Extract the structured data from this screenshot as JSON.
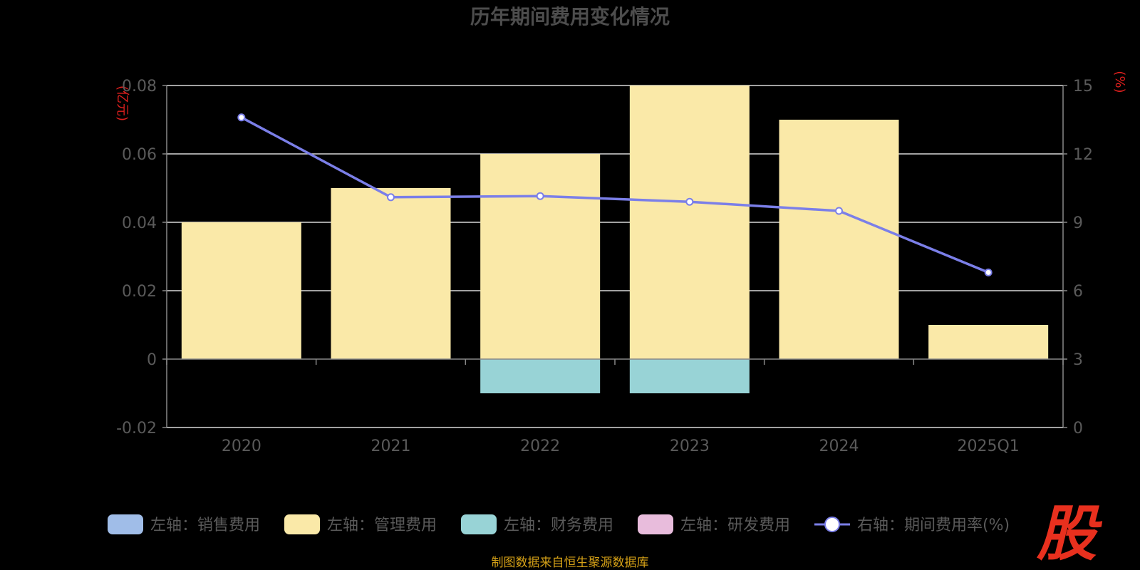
{
  "chart_data": {
    "type": "bar",
    "title": "历年期间费用变化情况",
    "categories": [
      "2020",
      "2021",
      "2022",
      "2023",
      "2024",
      "2025Q1"
    ],
    "left_axis": {
      "unit": "(亿元)",
      "ylim": [
        -0.02,
        0.08
      ],
      "ticks": [
        "0.08",
        "0.06",
        "0.04",
        "0.02",
        "0",
        "-0.02"
      ],
      "tick_values": [
        0.08,
        0.06,
        0.04,
        0.02,
        0,
        -0.02
      ]
    },
    "right_axis": {
      "unit": "(%)",
      "ylim": [
        0,
        15
      ],
      "ticks": [
        "15",
        "12",
        "9",
        "6",
        "3",
        "0"
      ],
      "tick_values": [
        15,
        12,
        9,
        6,
        3,
        0
      ]
    },
    "series": [
      {
        "name": "左轴：销售费用",
        "type": "bar",
        "axis": "left",
        "color": "#a0bde8",
        "values": [
          0,
          0,
          0,
          0,
          0,
          0
        ]
      },
      {
        "name": "左轴：管理费用",
        "type": "bar",
        "axis": "left",
        "color": "#fae9a8",
        "values": [
          0.04,
          0.05,
          0.06,
          0.08,
          0.07,
          0.01
        ]
      },
      {
        "name": "左轴：财务费用",
        "type": "bar",
        "axis": "left",
        "color": "#98d3d6",
        "values": [
          0,
          0,
          -0.01,
          -0.01,
          0,
          0
        ]
      },
      {
        "name": "左轴：研发费用",
        "type": "bar",
        "axis": "left",
        "color": "#e8bcdc",
        "values": [
          0,
          0,
          0,
          0,
          0,
          0
        ]
      },
      {
        "name": "右轴：期间费用率(%)",
        "type": "line",
        "axis": "right",
        "color": "#7b7fe8",
        "values": [
          13.6,
          10.1,
          10.15,
          9.9,
          9.5,
          6.8
        ]
      }
    ],
    "grid": true,
    "legend_position": "bottom"
  },
  "source": "制图数据来自恒生聚源数据库",
  "logo_text": "股"
}
